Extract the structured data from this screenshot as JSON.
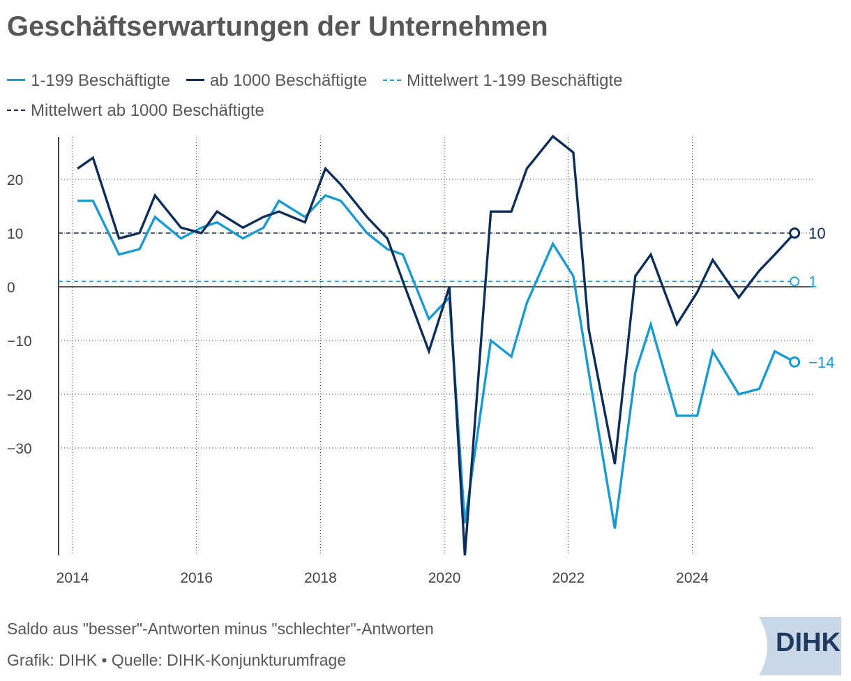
{
  "title": "Geschäftserwartungen der Unternehmen",
  "footer": {
    "note": "Saldo aus \"besser\"-Antworten minus \"schlechter\"-Antworten",
    "source": "Grafik: DIHK • Quelle: DIHK-Konjunkturumfrage"
  },
  "logo": {
    "text": "DIHK"
  },
  "colors": {
    "small": "#1a9bd0",
    "large": "#0f2e57",
    "zero": "#555555",
    "grid": "#333333"
  },
  "chart_data": {
    "type": "line",
    "title": "Geschäftserwartungen der Unternehmen",
    "xlabel": "",
    "ylabel": "",
    "xlim": [
      2013.9,
      2025.95
    ],
    "ylim": [
      -50,
      28
    ],
    "x_ticks": [
      2014,
      2016,
      2018,
      2020,
      2022,
      2024
    ],
    "x_tick_labels": [
      "2014",
      "2016",
      "2018",
      "2020",
      "2022",
      "2024"
    ],
    "y_ticks": [
      20,
      10,
      0,
      -10,
      -20,
      -30
    ],
    "y_tick_labels": [
      "20",
      "10",
      "0",
      "−10",
      "−20",
      "−30"
    ],
    "grid": true,
    "legend_position": "top",
    "x": [
      2014.08,
      2014.33,
      2014.75,
      2015.08,
      2015.33,
      2015.75,
      2016.08,
      2016.33,
      2016.75,
      2017.08,
      2017.33,
      2017.75,
      2018.08,
      2018.33,
      2018.75,
      2019.08,
      2019.33,
      2019.75,
      2020.08,
      2020.33,
      2020.75,
      2021.08,
      2021.33,
      2021.75,
      2022.08,
      2022.33,
      2022.75,
      2023.08,
      2023.33,
      2023.75,
      2024.08,
      2024.33,
      2024.75,
      2025.08,
      2025.33,
      2025.65
    ],
    "series": [
      {
        "name": "1-199 Beschäftigte",
        "style": "solid",
        "color": "#1a9bd0",
        "values": [
          16,
          16,
          6,
          7,
          13,
          9,
          11,
          12,
          9,
          11,
          16,
          13,
          17,
          16,
          10,
          7,
          6,
          -6,
          -2,
          -44,
          -10,
          -13,
          -3,
          8,
          2,
          -16,
          -45,
          -16,
          -7,
          -24,
          -24,
          -12,
          -20,
          -19,
          -12,
          -14
        ]
      },
      {
        "name": "ab 1000 Beschäftigte",
        "style": "solid",
        "color": "#0f2e57",
        "values": [
          22,
          24,
          9,
          10,
          17,
          11,
          10,
          14,
          11,
          13,
          14,
          12,
          22,
          19,
          13,
          9,
          1,
          -12,
          0,
          -50,
          14,
          14,
          22,
          28,
          25,
          -8,
          -33,
          2,
          6,
          -7,
          -1,
          5,
          -2,
          3,
          6,
          10
        ]
      },
      {
        "name": "Mittelwert 1-199 Beschäftigte",
        "style": "dashed",
        "color": "#1a9bd0",
        "value": 1
      },
      {
        "name": "Mittelwert ab 1000 Beschäftigte",
        "style": "dashed",
        "color": "#0f2e57",
        "value": 10
      }
    ],
    "end_labels": [
      {
        "series": "ab 1000 Beschäftigte",
        "text": "10",
        "value": 10
      },
      {
        "series": "Mittelwert 1-199 Beschäftigte",
        "text": "1",
        "value": 1
      },
      {
        "series": "1-199 Beschäftigte",
        "text": "−14",
        "value": -14
      }
    ]
  }
}
